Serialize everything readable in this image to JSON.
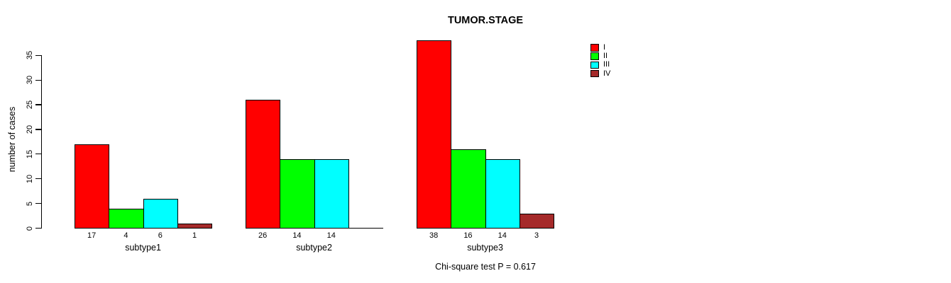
{
  "figure": {
    "title": "TUMOR.STAGE",
    "y_axis_label": "number of cases",
    "footer": "Chi-square test P = 0.617"
  },
  "chart_data": {
    "type": "bar",
    "title": "TUMOR.STAGE",
    "xlabel": "",
    "ylabel": "number of cases",
    "ylim": [
      0,
      35
    ],
    "yticks": [
      0,
      5,
      10,
      15,
      20,
      25,
      30,
      35
    ],
    "grid": false,
    "categories": [
      "subtype1",
      "subtype2",
      "subtype3"
    ],
    "series": [
      {
        "name": "I",
        "color": "#FF0000",
        "values": [
          17,
          26,
          38
        ]
      },
      {
        "name": "II",
        "color": "#00FF00",
        "values": [
          4,
          14,
          16
        ]
      },
      {
        "name": "III",
        "color": "#00FFFF",
        "values": [
          6,
          14,
          14
        ]
      },
      {
        "name": "IV",
        "color": "#A52A2A",
        "values": [
          1,
          0,
          3
        ]
      }
    ],
    "bar_value_labels": [
      [
        "17",
        "4",
        "6",
        "1"
      ],
      [
        "26",
        "14",
        "14",
        ""
      ],
      [
        "38",
        "16",
        "14",
        "3"
      ]
    ],
    "legend_position": "topright",
    "legend_items": [
      {
        "label": "I",
        "color": "#FF0000"
      },
      {
        "label": "II",
        "color": "#00FF00"
      },
      {
        "label": "III",
        "color": "#00FFFF"
      },
      {
        "label": "IV",
        "color": "#A52A2A"
      }
    ],
    "bar_border_color": "#000000",
    "annotation": "Chi-square test P = 0.617"
  }
}
